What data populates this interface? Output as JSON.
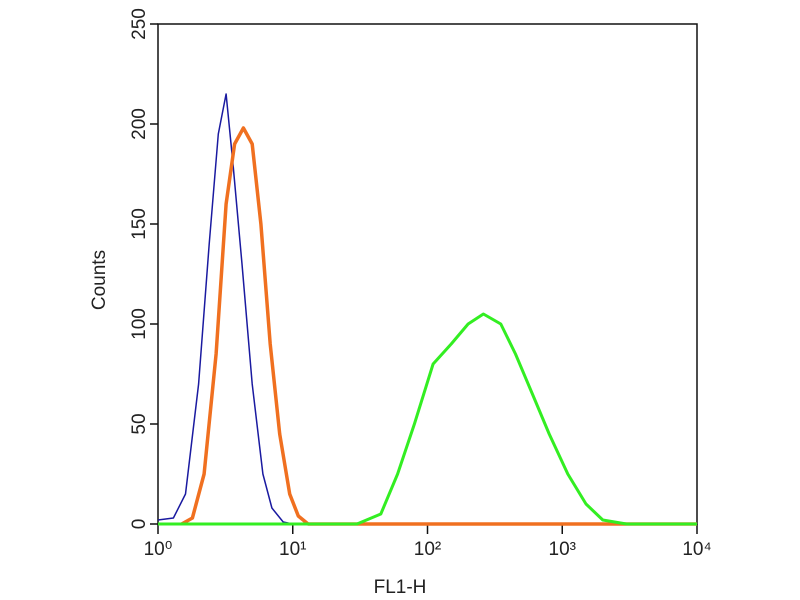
{
  "chart_data": {
    "type": "line",
    "xlabel": "FL1-H",
    "ylabel": "Counts",
    "xscale": "log",
    "xlim": [
      1,
      10000
    ],
    "xticks": [
      {
        "value": 1,
        "label": "10⁰"
      },
      {
        "value": 10,
        "label": "10¹"
      },
      {
        "value": 100,
        "label": "10²"
      },
      {
        "value": 1000,
        "label": "10³"
      },
      {
        "value": 10000,
        "label": "10⁴"
      }
    ],
    "ylim": [
      0,
      250
    ],
    "yticks": [
      0,
      50,
      100,
      150,
      200,
      250
    ],
    "series": [
      {
        "color": "#1a1aa0",
        "width": 1.5,
        "x": [
          1,
          1.3,
          1.6,
          2.0,
          2.4,
          2.8,
          3.2,
          3.6,
          4.2,
          5.0,
          6.0,
          7.0,
          8.5,
          10
        ],
        "values": [
          2,
          3,
          15,
          70,
          140,
          195,
          215,
          180,
          130,
          70,
          25,
          8,
          1,
          0
        ]
      },
      {
        "color": "#f07020",
        "width": 3.5,
        "x": [
          1.5,
          1.8,
          2.2,
          2.7,
          3.2,
          3.7,
          4.3,
          5.0,
          5.8,
          6.8,
          8.0,
          9.5,
          11,
          13,
          20,
          100,
          10000
        ],
        "values": [
          0,
          3,
          25,
          85,
          160,
          190,
          198,
          190,
          150,
          90,
          45,
          15,
          4,
          0,
          0,
          0,
          0
        ]
      },
      {
        "color": "#33ee22",
        "width": 3,
        "x": [
          1,
          30,
          45,
          60,
          80,
          110,
          150,
          200,
          260,
          350,
          450,
          600,
          800,
          1100,
          1500,
          2000,
          3000,
          10000
        ],
        "values": [
          0,
          0,
          5,
          25,
          50,
          80,
          90,
          100,
          105,
          100,
          85,
          65,
          45,
          25,
          10,
          2,
          0,
          0
        ]
      }
    ]
  }
}
